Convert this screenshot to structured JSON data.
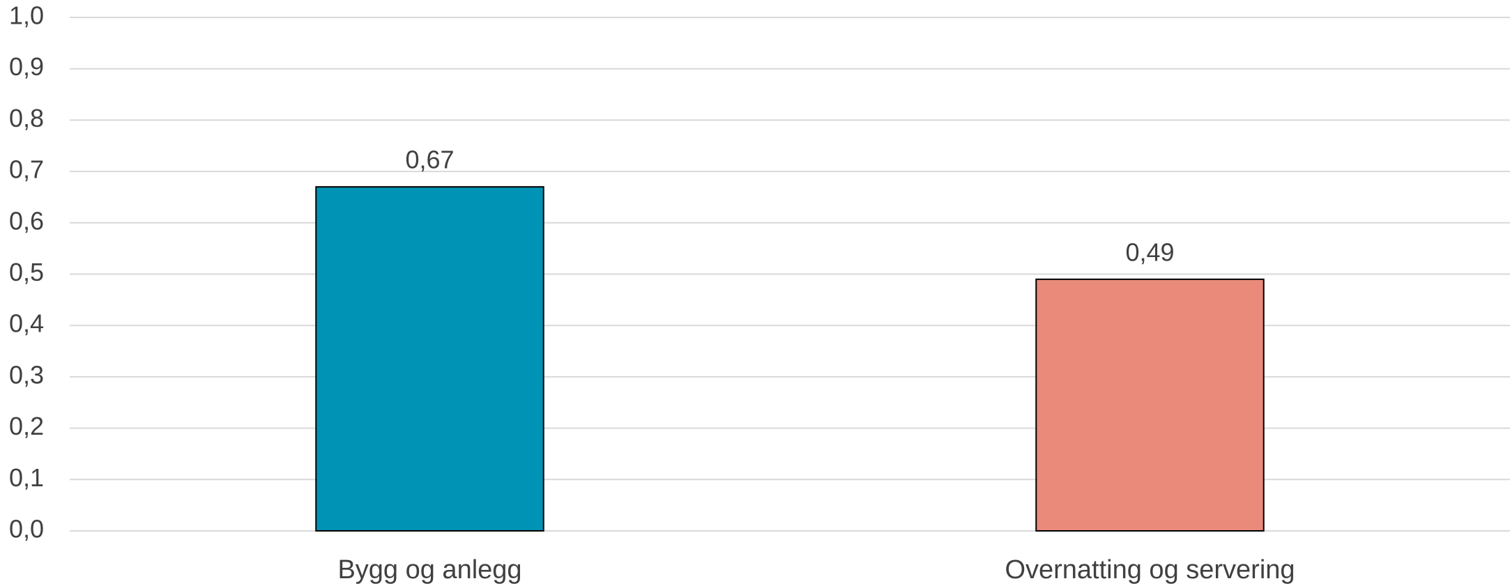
{
  "chart_data": {
    "type": "bar",
    "categories": [
      "Bygg og anlegg",
      "Overnatting og servering"
    ],
    "values": [
      0.67,
      0.49
    ],
    "value_labels": [
      "0,67",
      "0,49"
    ],
    "colors": [
      "#0093b5",
      "#e98a7a"
    ],
    "ylim": [
      0,
      1
    ],
    "yticks": [
      {
        "value": 0,
        "label": "0,0"
      },
      {
        "value": 0.1,
        "label": "0,1"
      },
      {
        "value": 0.2,
        "label": "0,2"
      },
      {
        "value": 0.3,
        "label": "0,3"
      },
      {
        "value": 0.4,
        "label": "0,4"
      },
      {
        "value": 0.5,
        "label": "0,5"
      },
      {
        "value": 0.6,
        "label": "0,6"
      },
      {
        "value": 0.7,
        "label": "0,7"
      },
      {
        "value": 0.8,
        "label": "0,8"
      },
      {
        "value": 0.9,
        "label": "0,9"
      },
      {
        "value": 1,
        "label": "1,0"
      }
    ],
    "grid": true
  }
}
